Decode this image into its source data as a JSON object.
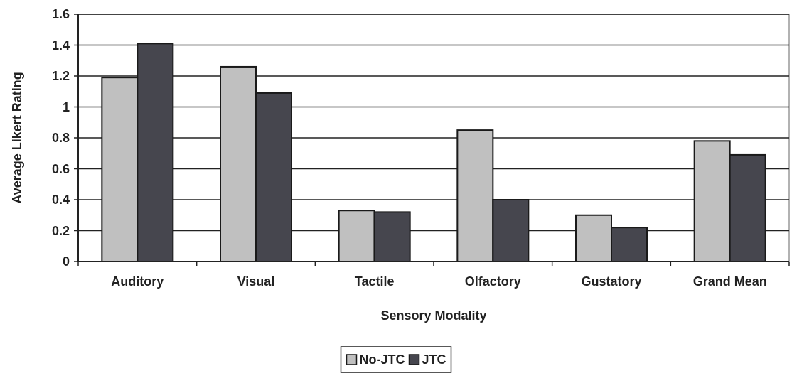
{
  "chart_data": {
    "type": "bar",
    "xlabel": "Sensory Modality",
    "ylabel": "Average Likert Rating",
    "categories": [
      "Auditory",
      "Visual",
      "Tactile",
      "Olfactory",
      "Gustatory",
      "Grand Mean"
    ],
    "series": [
      {
        "name": "No-JTC",
        "color": "#c0c0c0",
        "values": [
          1.19,
          1.26,
          0.33,
          0.85,
          0.3,
          0.78
        ]
      },
      {
        "name": "JTC",
        "color": "#46464e",
        "values": [
          1.41,
          1.09,
          0.32,
          0.4,
          0.22,
          0.69
        ]
      }
    ],
    "ylim": [
      0,
      1.6
    ],
    "yticks": [
      0,
      0.2,
      0.4,
      0.6,
      0.8,
      1,
      1.2,
      1.4,
      1.6
    ],
    "grid": "y",
    "legend": "bottom"
  }
}
